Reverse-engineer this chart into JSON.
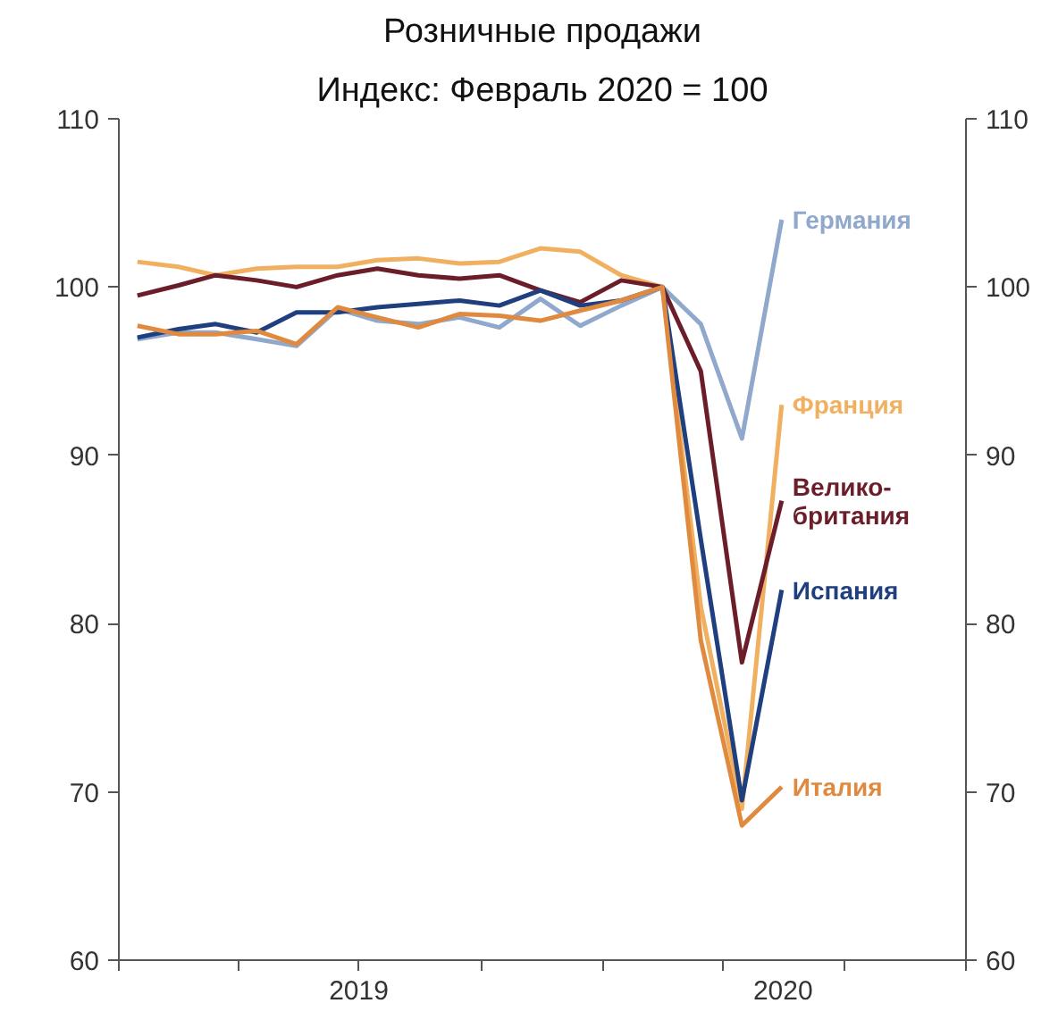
{
  "chart_data": {
    "type": "line",
    "title": "Розничные продажи",
    "subtitle": "Индекс: Февраль 2020 = 100",
    "x": [
      "2019-01-15",
      "2019-02-15",
      "2019-03-15",
      "2019-04-15",
      "2019-05-15",
      "2019-06-15",
      "2019-07-15",
      "2019-08-15",
      "2019-09-15",
      "2019-10-15",
      "2019-11-15",
      "2019-12-15",
      "2020-01-15",
      "2020-02-15",
      "2020-03-15",
      "2020-04-15",
      "2020-05-15"
    ],
    "series": [
      {
        "name": "Германия",
        "color": "#8fa8cc",
        "values": [
          96.9,
          97.3,
          97.3,
          96.9,
          96.5,
          98.7,
          98.0,
          97.8,
          98.2,
          97.6,
          99.3,
          97.7,
          98.9,
          100,
          97.8,
          91,
          104
        ]
      },
      {
        "name": "Франция",
        "color": "#f0b060",
        "values": [
          101.5,
          101.2,
          100.7,
          101.1,
          101.2,
          101.2,
          101.6,
          101.7,
          101.4,
          101.5,
          102.3,
          102.1,
          100.7,
          100,
          81,
          69,
          93
        ]
      },
      {
        "name": "Велико-\nбритания",
        "color": "#6b1e2a",
        "values": [
          99.5,
          100.1,
          100.7,
          100.4,
          100,
          100.7,
          101.1,
          100.7,
          100.5,
          100.7,
          99.8,
          99.1,
          100.4,
          100,
          95,
          77.7,
          87.3
        ]
      },
      {
        "name": "Испания",
        "color": "#1f3f7f",
        "values": [
          97,
          97.5,
          97.8,
          97.3,
          98.5,
          98.5,
          98.8,
          99,
          99.2,
          98.9,
          99.8,
          98.9,
          99.2,
          100,
          85,
          69.5,
          82
        ]
      },
      {
        "name": "Италия",
        "color": "#e08a40",
        "values": [
          97.7,
          97.2,
          97.2,
          97.4,
          96.6,
          98.8,
          98.2,
          97.6,
          98.4,
          98.3,
          98,
          98.6,
          99.2,
          100,
          79,
          68,
          70.3
        ]
      }
    ],
    "xlim": [
      "2019-01-01",
      "2020-10-01"
    ],
    "xticks": [
      {
        "value": "2019-01-01",
        "label": null
      },
      {
        "value": "2019-04-01",
        "label": null
      },
      {
        "value": "2019-07-01",
        "label": null
      },
      {
        "value": "2019-10-01",
        "label": null
      },
      {
        "value": "2020-01-01",
        "label": null
      },
      {
        "value": "2020-04-01",
        "label": null
      },
      {
        "value": "2020-07-01",
        "label": null
      },
      {
        "value": "2020-10-01",
        "label": null
      },
      {
        "value": "2019-07-01",
        "label": "2019"
      },
      {
        "value": "2020-05-16",
        "label": "2020"
      }
    ],
    "ylim": [
      60,
      110
    ],
    "yticks": [
      60,
      70,
      80,
      90,
      100,
      110
    ],
    "y2lim": [
      60,
      110
    ],
    "y2ticks": [
      60,
      70,
      80,
      90,
      100,
      110
    ],
    "grid": false,
    "legend": false,
    "marker": "none",
    "line_style": "solid"
  }
}
